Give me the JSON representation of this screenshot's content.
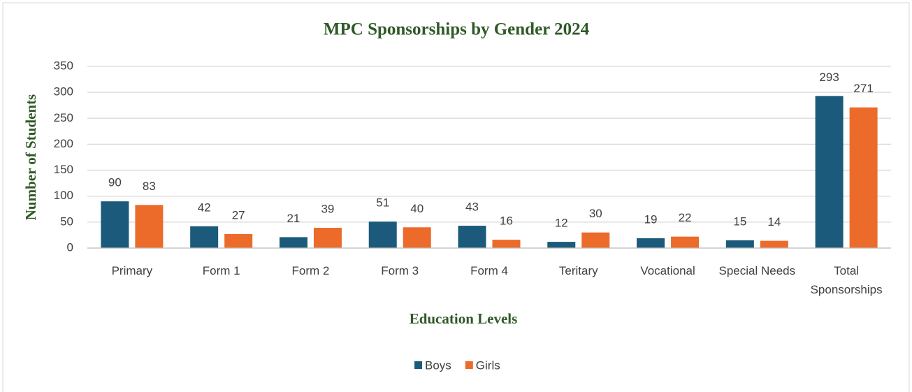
{
  "chart_data": {
    "type": "bar",
    "title": "MPC Sponsorships by Gender 2024",
    "x_label": "Education Levels",
    "y_label": "Number of Students",
    "categories": [
      "Primary",
      "Form 1",
      "Form 2",
      "Form 3",
      "Form 4",
      "Teritary",
      "Vocational",
      "Special Needs",
      "Total Sponsorships"
    ],
    "series": [
      {
        "name": "Boys",
        "color": "#1b5a7a",
        "values": [
          90,
          42,
          21,
          51,
          43,
          12,
          19,
          15,
          293
        ]
      },
      {
        "name": "Girls",
        "color": "#ec6b2b",
        "values": [
          83,
          27,
          39,
          40,
          16,
          30,
          22,
          14,
          271
        ]
      }
    ],
    "ylim": [
      0,
      350
    ],
    "yticks": [
      0,
      50,
      100,
      150,
      200,
      250,
      300,
      350
    ],
    "grid": true,
    "legend": "bottom"
  }
}
